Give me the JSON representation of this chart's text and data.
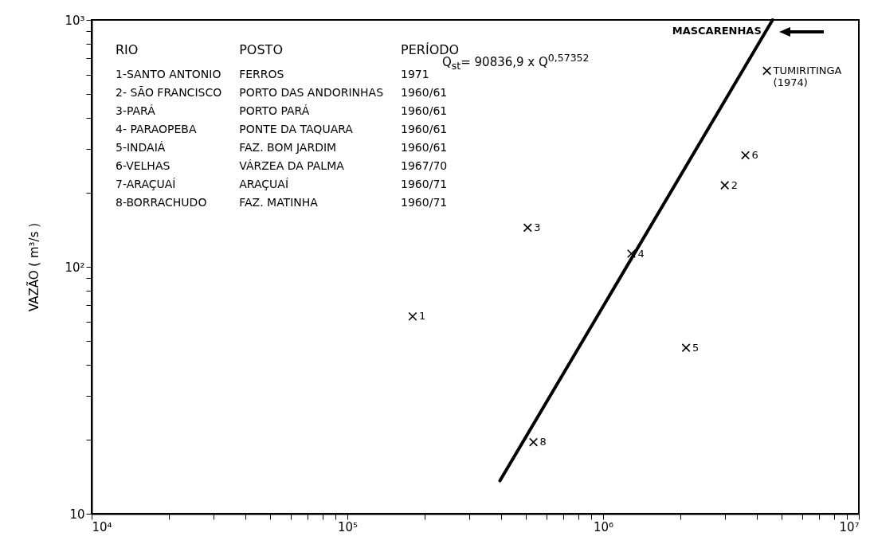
{
  "chart_data": {
    "type": "scatter",
    "ylabel": "VAZÃO ( m³/s )",
    "log": "xy",
    "grid": false,
    "marker": "cross",
    "xlim": [
      10000,
      10000000
    ],
    "xticks": [
      {
        "value": 10000,
        "label": "10⁴"
      },
      {
        "value": 20000,
        "label": null
      },
      {
        "value": 30000,
        "label": null
      },
      {
        "value": 40000,
        "label": null
      },
      {
        "value": 50000,
        "label": null
      },
      {
        "value": 60000,
        "label": null
      },
      {
        "value": 70000,
        "label": null
      },
      {
        "value": 80000,
        "label": null
      },
      {
        "value": 90000,
        "label": null
      },
      {
        "value": 100000,
        "label": "10⁵"
      },
      {
        "value": 200000,
        "label": null
      },
      {
        "value": 300000,
        "label": null
      },
      {
        "value": 400000,
        "label": null
      },
      {
        "value": 500000,
        "label": null
      },
      {
        "value": 600000,
        "label": null
      },
      {
        "value": 700000,
        "label": null
      },
      {
        "value": 800000,
        "label": null
      },
      {
        "value": 900000,
        "label": null
      },
      {
        "value": 1000000,
        "label": "10⁶"
      },
      {
        "value": 2000000,
        "label": null
      },
      {
        "value": 3000000,
        "label": null
      },
      {
        "value": 4000000,
        "label": null
      },
      {
        "value": 5000000,
        "label": null
      },
      {
        "value": 6000000,
        "label": null
      },
      {
        "value": 7000000,
        "label": null
      },
      {
        "value": 8000000,
        "label": null
      },
      {
        "value": 9000000,
        "label": null
      },
      {
        "value": 10000000,
        "label": "10⁷"
      }
    ],
    "ylim": [
      10,
      1000
    ],
    "yticks": [
      10,
      {
        "value": 20,
        "label": null
      },
      {
        "value": 30,
        "label": null
      },
      {
        "value": 40,
        "label": null
      },
      {
        "value": 50,
        "label": null
      },
      {
        "value": 60,
        "label": null
      },
      {
        "value": 70,
        "label": null
      },
      {
        "value": 80,
        "label": null
      },
      {
        "value": 90,
        "label": null
      },
      {
        "value": 100,
        "label": "10²"
      },
      {
        "value": 200,
        "label": null
      },
      {
        "value": 300,
        "label": null
      },
      {
        "value": 400,
        "label": null
      },
      {
        "value": 500,
        "label": null
      },
      {
        "value": 600,
        "label": null
      },
      {
        "value": 700,
        "label": null
      },
      {
        "value": 800,
        "label": null
      },
      {
        "value": 900,
        "label": null
      },
      {
        "value": 1000,
        "label": "10³"
      }
    ],
    "series": [
      {
        "color": "#000000",
        "x": [
          180000,
          2990000,
          507000,
          1290000,
          2110000,
          3600000,
          534000,
          4370000
        ],
        "values": [
          63,
          214,
          144,
          113,
          47,
          283,
          19.5,
          622
        ]
      },
      {
        "type": "line",
        "color": "#000000",
        "line_style": "solid",
        "marker": "none",
        "x": [
          395000,
          4600000
        ],
        "values": [
          13.6,
          1000
        ]
      }
    ],
    "annotations": [
      "RIO",
      "POSTO",
      "PERÍODO",
      "1-SANTO ANTONIO",
      "FERROS",
      "1971",
      "2- SÃO FRANCISCO",
      "PORTO DAS ANDORINHAS",
      "1960/61",
      "3-PARÁ",
      "PORTO PARÁ",
      "1960/61",
      "4- PARAOPEBA",
      "PONTE DA TAQUARA",
      "1960/61",
      "5-INDAIÁ",
      "FAZ. BOM JARDIM",
      "1960/61",
      "6-VELHAS",
      "VÁRZEA DA PALMA",
      "1967/70",
      "7-ARAÇUAÍ",
      "ARAÇUAÍ",
      "1960/71",
      "8-BORRACHUDO",
      "FAZ. MATINHA",
      "1960/71",
      "Q$_{st}$= 90836,9 x Q$^{0,57352}$",
      "MASCARENHAS",
      {
        "text": "1",
        "x": 180000,
        "y": 63
      },
      {
        "text": "2",
        "x": 2990000,
        "y": 214
      },
      {
        "text": "3",
        "x": 507000,
        "y": 144
      },
      {
        "text": "4",
        "x": 1290000,
        "y": 113
      },
      {
        "text": "5",
        "x": 2110000,
        "y": 47
      },
      {
        "text": "6",
        "x": 3600000,
        "y": 283
      },
      {
        "text": "8",
        "x": 534000,
        "y": 19.5
      },
      {
        "text": "TUMIRITINGA (1974)",
        "x": 4370000,
        "y": 622
      }
    ]
  }
}
